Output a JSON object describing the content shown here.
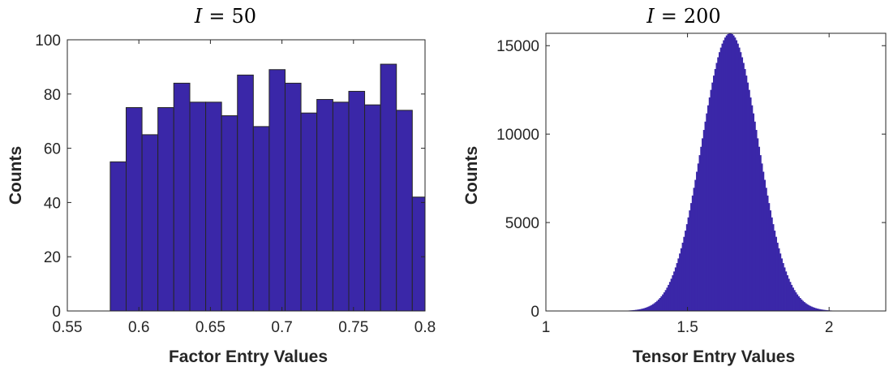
{
  "chart_data": [
    {
      "type": "bar",
      "title_var": "I",
      "title_eq": "=",
      "title_val": "50",
      "xlabel": "Factor Entry Values",
      "ylabel": "Counts",
      "xlim": [
        0.55,
        0.8
      ],
      "ylim": [
        0,
        100
      ],
      "xticks": [
        0.55,
        0.6,
        0.65,
        0.7,
        0.75,
        0.8
      ],
      "xtick_labels": [
        "0.55",
        "0.6",
        "0.65",
        "0.7",
        "0.75",
        "0.8"
      ],
      "yticks": [
        0,
        20,
        40,
        60,
        80,
        100
      ],
      "ytick_labels": [
        "0",
        "20",
        "40",
        "60",
        "80",
        "100"
      ],
      "bin_edges": [
        0.58,
        0.5911,
        0.6022,
        0.6133,
        0.6244,
        0.6356,
        0.6467,
        0.6578,
        0.6689,
        0.68,
        0.6911,
        0.7022,
        0.7133,
        0.7244,
        0.7356,
        0.7467,
        0.7578,
        0.7689,
        0.78,
        0.7911,
        0.8022
      ],
      "values": [
        55,
        75,
        65,
        75,
        84,
        77,
        77,
        72,
        87,
        68,
        89,
        84,
        73,
        78,
        77,
        81,
        76,
        91,
        74,
        42
      ],
      "bar_color": "#3a27a8",
      "edge_color": "#262626",
      "grid": false
    },
    {
      "type": "bar",
      "title_var": "I",
      "title_eq": "=",
      "title_val": "200",
      "xlabel": "Tensor Entry Values",
      "ylabel": "Counts",
      "xlim": [
        1,
        2.2
      ],
      "ylim": [
        0,
        15700
      ],
      "xticks": [
        1,
        1.5,
        2
      ],
      "xtick_labels": [
        "1",
        "1.5",
        "2"
      ],
      "yticks": [
        0,
        5000,
        10000,
        15000
      ],
      "ytick_labels": [
        "0",
        "5000",
        "10000",
        "15000"
      ],
      "distribution": {
        "shape": "approximately normal",
        "peak_x": 1.65,
        "peak_count": 15700,
        "std": 0.1,
        "range": [
          1.18,
          2.08
        ],
        "bin_width": 0.005
      },
      "bar_color": "#3a27a8",
      "grid": false
    }
  ]
}
